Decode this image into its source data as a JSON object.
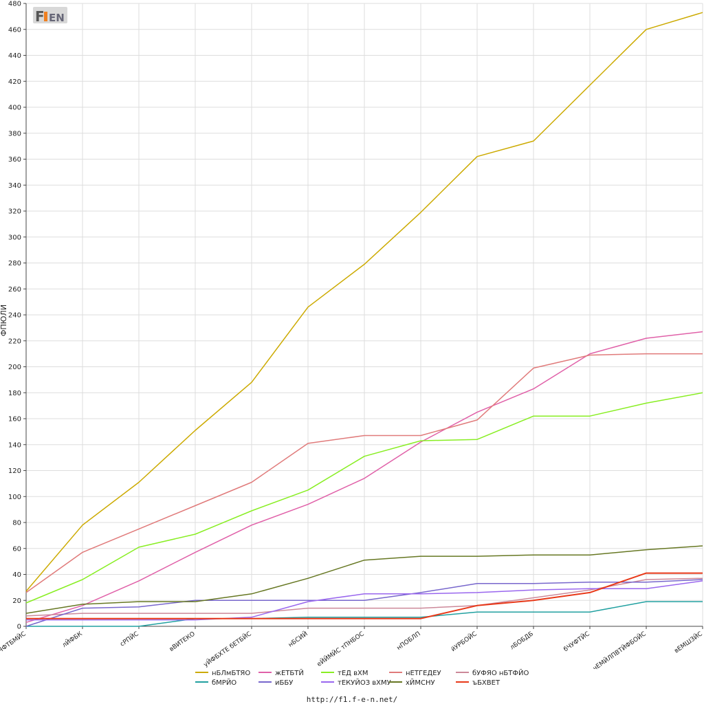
{
  "footer_url": "http://f1.f-e-n.net/",
  "chart_data": {
    "type": "line",
    "title": "",
    "xlabel": "",
    "ylabel": "ФПЮЛИ",
    "ylim": [
      0,
      480
    ],
    "ytick_step": 20,
    "grid": true,
    "legend_position": "bottom",
    "categories": [
      "бЧФТБМЙС",
      "лЙФБК",
      "сРПЙС",
      "вВИТЕКО",
      "уЙФБХТЕ бЕТБЙС",
      "нБСИЙ",
      "еЙЙМЙС тПНБОС",
      "нПОБЛП",
      "йУРБОЙС",
      "лБОБДБ",
      "бЧУФТЙС",
      "чЕМЙЛПВТЙФБОЙС",
      "вЕМШЗЙС"
    ],
    "series": [
      {
        "name": "нБЛмБТЯО",
        "color": "#ccaa00",
        "values": [
          27,
          78,
          111,
          151,
          188,
          246,
          279,
          319,
          362,
          374,
          417,
          460,
          473
        ]
      },
      {
        "name": "жЕТБТЙ",
        "color": "#e060a8",
        "values": [
          3,
          16,
          35,
          57,
          78,
          94,
          114,
          142,
          165,
          183,
          210,
          222,
          227
        ]
      },
      {
        "name": "тЕД вХМ",
        "color": "#88ee22",
        "values": [
          18,
          36,
          61,
          71,
          89,
          105,
          131,
          143,
          144,
          162,
          162,
          172,
          180
        ]
      },
      {
        "name": "нЕТГЕДЕУ",
        "color": "#e07a7a",
        "values": [
          26,
          57,
          75,
          93,
          111,
          141,
          147,
          147,
          159,
          199,
          209,
          210,
          210
        ]
      },
      {
        "name": "бУФЯО нБТФЙО",
        "color": "#cc8899",
        "values": [
          8,
          10,
          10,
          10,
          10,
          14,
          14,
          14,
          16,
          22,
          28,
          36,
          37
        ]
      },
      {
        "name": "бМРЙО",
        "color": "#20a0a0",
        "values": [
          0,
          0,
          0,
          6,
          6,
          7,
          7,
          7,
          11,
          11,
          11,
          19,
          19
        ]
      },
      {
        "name": "иББУ",
        "color": "#7766cc",
        "values": [
          0,
          14,
          15,
          20,
          20,
          20,
          20,
          26,
          33,
          33,
          34,
          34,
          36
        ]
      },
      {
        "name": "тЕКУЙОЗ вХМУ",
        "color": "#9966ee",
        "values": [
          5,
          5,
          5,
          5,
          7,
          19,
          25,
          25,
          26,
          28,
          29,
          29,
          35
        ]
      },
      {
        "name": "хЙМСНУ",
        "color": "#667722",
        "values": [
          10,
          17,
          19,
          19,
          25,
          37,
          51,
          54,
          54,
          55,
          55,
          59,
          62
        ]
      },
      {
        "name": "ъБХВЕТ",
        "color": "#e83818",
        "values": [
          6,
          6,
          6,
          6,
          6,
          6,
          6,
          6,
          16,
          20,
          26,
          41,
          41
        ]
      }
    ]
  }
}
